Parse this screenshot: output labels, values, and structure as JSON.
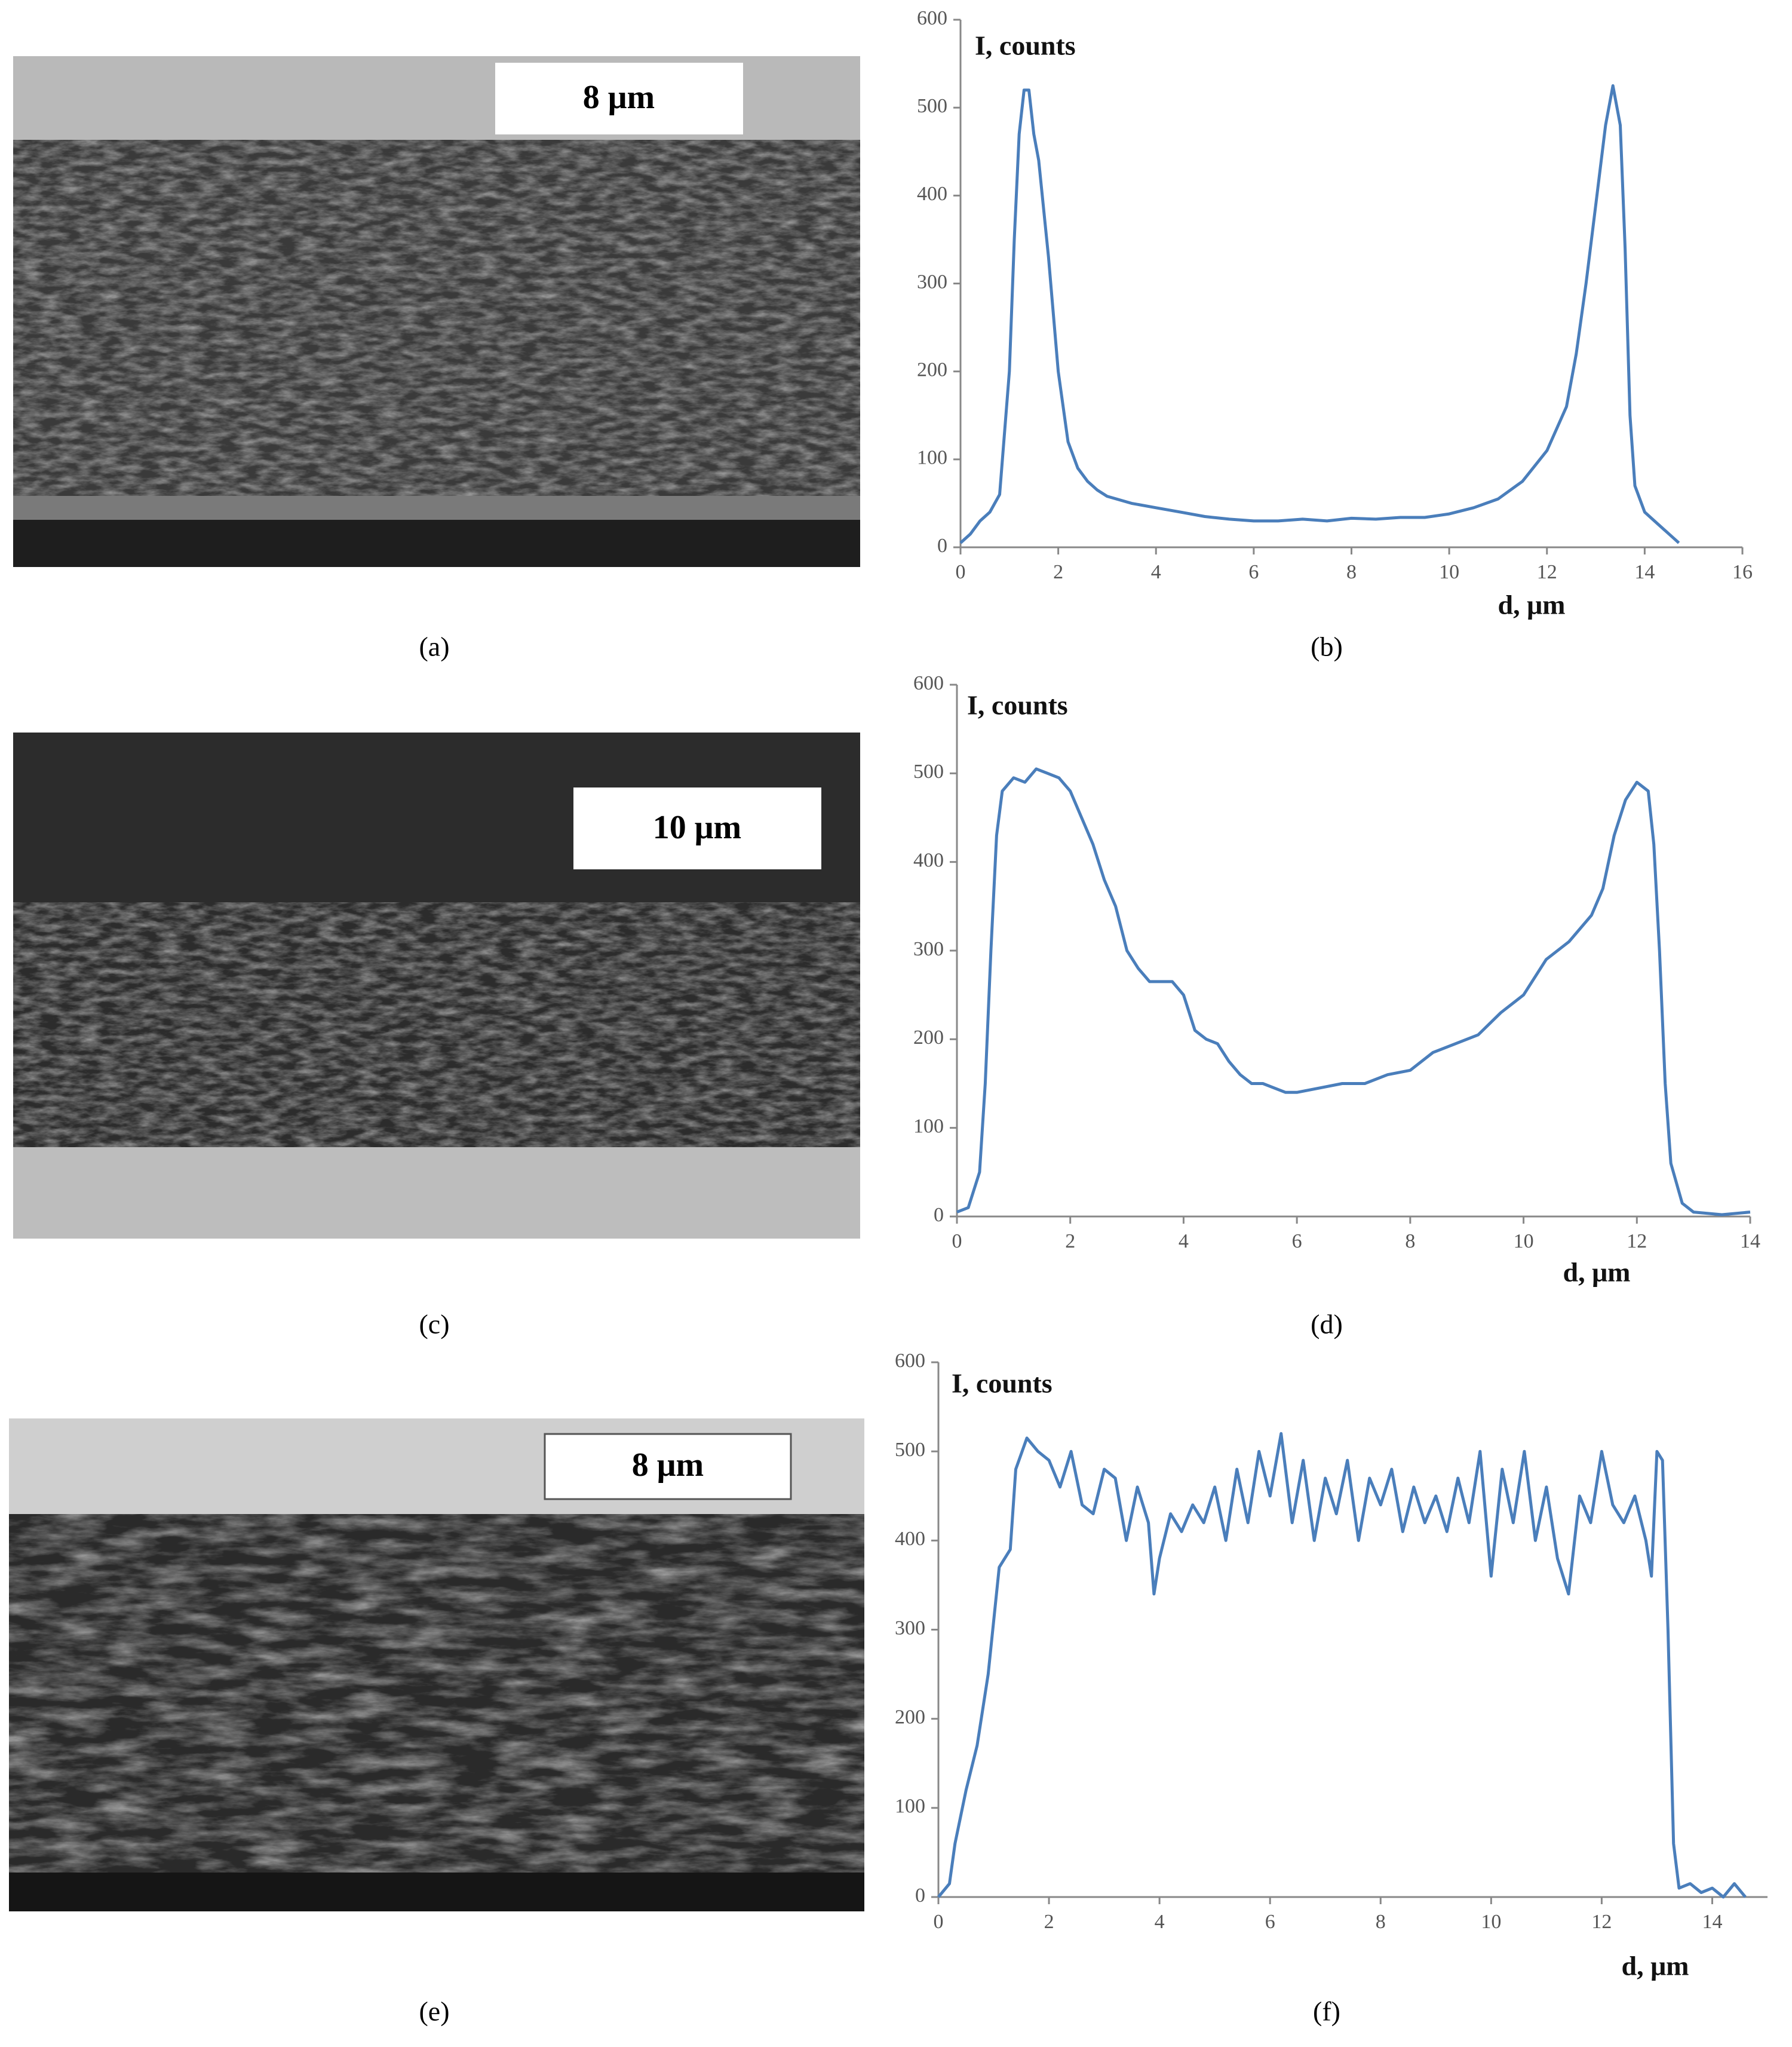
{
  "panels": [
    {
      "label": "(a)",
      "scale_bar": "8 μm"
    },
    {
      "label": "(b)"
    },
    {
      "label": "(c)",
      "scale_bar": "10 μm"
    },
    {
      "label": "(d)"
    },
    {
      "label": "(e)",
      "scale_bar": "8 μm"
    },
    {
      "label": "(f)"
    }
  ],
  "chart_data": [
    {
      "type": "line",
      "y_label": "I, counts",
      "x_label": "d, μm",
      "xlim": [
        0,
        16
      ],
      "xticks": [
        0,
        2,
        4,
        6,
        8,
        10,
        12,
        14,
        16
      ],
      "ylim": [
        0,
        600
      ],
      "yticks": [
        0,
        100,
        200,
        300,
        400,
        500,
        600
      ],
      "series": [
        {
          "color": "#4a7ebb",
          "x": [
            0,
            0.2,
            0.4,
            0.6,
            0.8,
            1.0,
            1.1,
            1.2,
            1.3,
            1.4,
            1.5,
            1.6,
            1.8,
            2.0,
            2.2,
            2.4,
            2.6,
            2.8,
            3.0,
            3.5,
            4.0,
            4.5,
            5.0,
            5.5,
            6.0,
            6.5,
            7.0,
            7.5,
            8.0,
            8.5,
            9.0,
            9.5,
            10.0,
            10.5,
            11.0,
            11.5,
            12.0,
            12.4,
            12.6,
            12.8,
            13.0,
            13.2,
            13.35,
            13.5,
            13.6,
            13.7,
            13.8,
            14.0,
            14.2,
            14.4,
            14.6,
            14.7
          ],
          "values": [
            5,
            15,
            30,
            40,
            60,
            200,
            350,
            470,
            520,
            520,
            470,
            440,
            330,
            200,
            120,
            90,
            75,
            65,
            58,
            50,
            45,
            40,
            35,
            32,
            30,
            30,
            32,
            30,
            33,
            32,
            34,
            34,
            38,
            45,
            55,
            75,
            110,
            160,
            220,
            300,
            390,
            480,
            525,
            480,
            340,
            150,
            70,
            40,
            30,
            20,
            10,
            5
          ]
        }
      ]
    },
    {
      "type": "line",
      "y_label": "I, counts",
      "x_label": "d, μm",
      "xlim": [
        0,
        14
      ],
      "xticks": [
        0,
        2,
        4,
        6,
        8,
        10,
        12,
        14
      ],
      "ylim": [
        0,
        600
      ],
      "yticks": [
        0,
        100,
        200,
        300,
        400,
        500,
        600
      ],
      "series": [
        {
          "color": "#4a7ebb",
          "x": [
            0,
            0.2,
            0.4,
            0.5,
            0.6,
            0.7,
            0.8,
            1.0,
            1.2,
            1.4,
            1.6,
            1.8,
            2.0,
            2.2,
            2.4,
            2.6,
            2.8,
            3.0,
            3.2,
            3.4,
            3.6,
            3.8,
            4.0,
            4.2,
            4.4,
            4.6,
            4.8,
            5.0,
            5.2,
            5.4,
            5.6,
            5.8,
            6.0,
            6.4,
            6.8,
            7.2,
            7.6,
            8.0,
            8.4,
            8.8,
            9.2,
            9.6,
            10.0,
            10.4,
            10.8,
            11.2,
            11.4,
            11.6,
            11.8,
            12.0,
            12.2,
            12.3,
            12.4,
            12.5,
            12.6,
            12.8,
            13.0,
            13.5,
            14.0
          ],
          "values": [
            5,
            10,
            50,
            150,
            300,
            430,
            480,
            495,
            490,
            505,
            500,
            495,
            480,
            450,
            420,
            380,
            350,
            300,
            280,
            265,
            265,
            265,
            250,
            210,
            200,
            195,
            175,
            160,
            150,
            150,
            145,
            140,
            140,
            145,
            150,
            150,
            160,
            165,
            185,
            195,
            205,
            230,
            250,
            290,
            310,
            340,
            370,
            430,
            470,
            490,
            480,
            420,
            300,
            150,
            60,
            15,
            5,
            2,
            5
          ]
        }
      ]
    },
    {
      "type": "line",
      "y_label": "I, counts",
      "x_label": "d, μm",
      "xlim": [
        0,
        15
      ],
      "xticks": [
        0,
        2,
        4,
        6,
        8,
        10,
        12,
        14
      ],
      "ylim": [
        0,
        600
      ],
      "yticks": [
        0,
        100,
        200,
        300,
        400,
        500,
        600
      ],
      "series": [
        {
          "color": "#4a7ebb",
          "x": [
            0,
            0.2,
            0.3,
            0.5,
            0.7,
            0.9,
            1.1,
            1.3,
            1.4,
            1.6,
            1.8,
            2.0,
            2.2,
            2.4,
            2.6,
            2.8,
            3.0,
            3.2,
            3.4,
            3.6,
            3.8,
            3.9,
            4.0,
            4.2,
            4.4,
            4.6,
            4.8,
            5.0,
            5.2,
            5.4,
            5.6,
            5.8,
            6.0,
            6.2,
            6.4,
            6.6,
            6.8,
            7.0,
            7.2,
            7.4,
            7.6,
            7.8,
            8.0,
            8.2,
            8.4,
            8.6,
            8.8,
            9.0,
            9.2,
            9.4,
            9.6,
            9.8,
            10.0,
            10.2,
            10.4,
            10.6,
            10.8,
            11.0,
            11.2,
            11.4,
            11.6,
            11.8,
            12.0,
            12.2,
            12.4,
            12.6,
            12.8,
            12.9,
            13.0,
            13.1,
            13.2,
            13.3,
            13.4,
            13.6,
            13.8,
            14.0,
            14.2,
            14.4,
            14.6
          ],
          "values": [
            0,
            15,
            60,
            120,
            170,
            250,
            370,
            390,
            480,
            515,
            500,
            490,
            460,
            500,
            440,
            430,
            480,
            470,
            400,
            460,
            420,
            340,
            380,
            430,
            410,
            440,
            420,
            460,
            400,
            480,
            420,
            500,
            450,
            520,
            420,
            490,
            400,
            470,
            430,
            490,
            400,
            470,
            440,
            480,
            410,
            460,
            420,
            450,
            410,
            470,
            420,
            500,
            360,
            480,
            420,
            500,
            400,
            460,
            380,
            340,
            450,
            420,
            500,
            440,
            420,
            450,
            400,
            360,
            500,
            490,
            300,
            60,
            10,
            15,
            5,
            10,
            0,
            15,
            0
          ]
        }
      ]
    }
  ]
}
